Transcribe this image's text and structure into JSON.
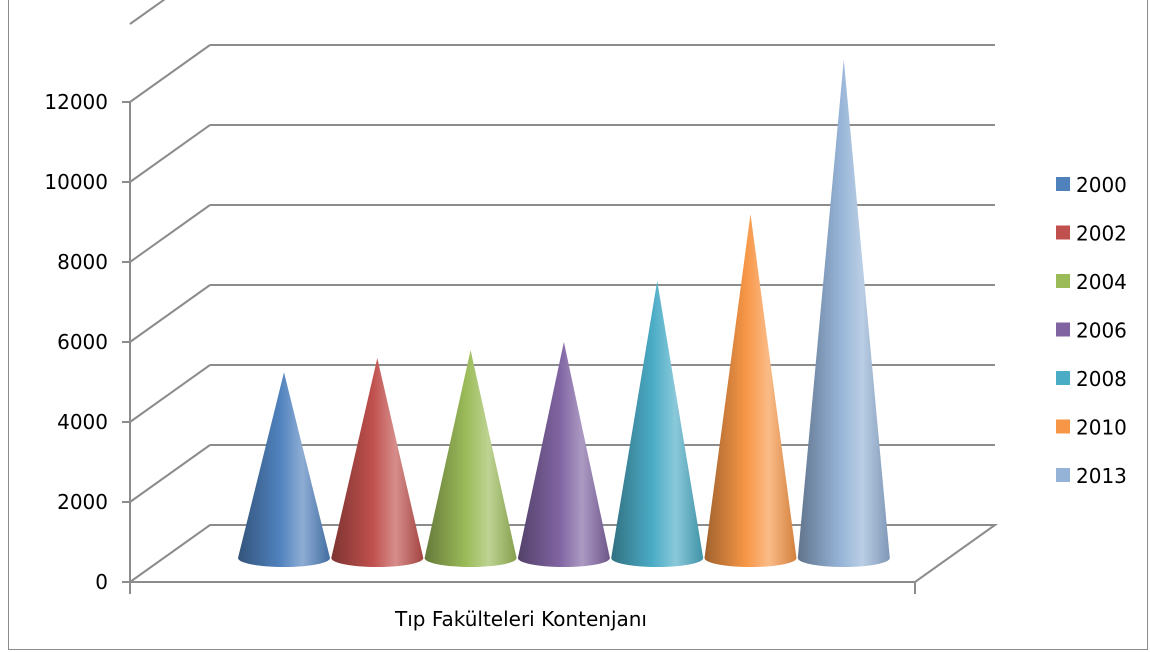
{
  "chart_data": {
    "type": "bar",
    "style": "3d-cone",
    "categories": [
      "Tıp Fakülteleri Kontenjanı"
    ],
    "series": [
      {
        "name": "2000",
        "values": [
          4500
        ],
        "color": "#4f81bd"
      },
      {
        "name": "2002",
        "values": [
          4850
        ],
        "color": "#c0504d"
      },
      {
        "name": "2004",
        "values": [
          5050
        ],
        "color": "#9bbb59"
      },
      {
        "name": "2006",
        "values": [
          5250
        ],
        "color": "#8064a2"
      },
      {
        "name": "2008",
        "values": [
          6750
        ],
        "color": "#4bacc6"
      },
      {
        "name": "2010",
        "values": [
          8400
        ],
        "color": "#f79646"
      },
      {
        "name": "2013",
        "values": [
          12200
        ],
        "color": "#95b3d7"
      }
    ],
    "ylim": [
      0,
      12000
    ],
    "yticks": [
      "0",
      "2000",
      "4000",
      "6000",
      "8000",
      "10000",
      "12000"
    ],
    "grid": true,
    "legend": "right"
  }
}
